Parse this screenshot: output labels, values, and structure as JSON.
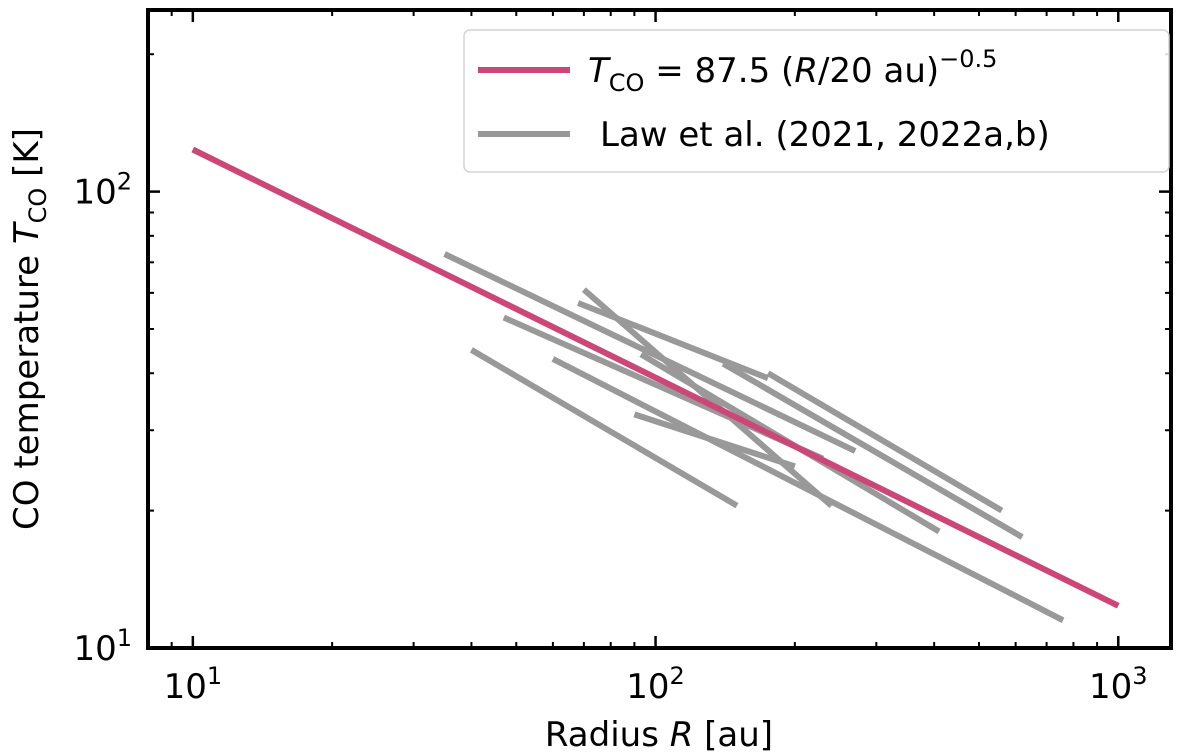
{
  "chart_data": {
    "type": "line",
    "x_scale": "log",
    "y_scale": "log",
    "xlim": [
      8,
      1300
    ],
    "ylim": [
      10,
      250
    ],
    "xlabel": {
      "prefix": "Radius ",
      "var": "R",
      "suffix": " [au]"
    },
    "ylabel": {
      "prefix": "CO temperature ",
      "var": "T",
      "sub": "CO",
      "suffix": " [K]"
    },
    "x_ticks": [
      {
        "base": "10",
        "exp": "1",
        "value": 10
      },
      {
        "base": "10",
        "exp": "2",
        "value": 100
      },
      {
        "base": "10",
        "exp": "3",
        "value": 1000
      }
    ],
    "y_ticks": [
      {
        "base": "10",
        "exp": "1",
        "value": 10
      },
      {
        "base": "10",
        "exp": "2",
        "value": 100
      }
    ],
    "grid": false,
    "legend_position": "top-right",
    "colors": {
      "model": "#cc4778",
      "obs": "#999999"
    },
    "model_line": {
      "legend": {
        "var": "T",
        "sub": "CO",
        "eq": " = 87.5 (",
        "rvar": "R",
        "rest": "/20 au)",
        "sup": "−0.5"
      },
      "x": [
        10,
        1000
      ],
      "y": [
        123.7,
        12.37
      ]
    },
    "obs_legend": "Law et al. (2021, 2022a,b)",
    "obs_lines": [
      {
        "x": [
          35,
          270
        ],
        "y": [
          73,
          27
        ]
      },
      {
        "x": [
          70,
          240
        ],
        "y": [
          61,
          20.5
        ]
      },
      {
        "x": [
          68,
          175
        ],
        "y": [
          57,
          39
        ]
      },
      {
        "x": [
          175,
          560
        ],
        "y": [
          40,
          20
        ]
      },
      {
        "x": [
          140,
          620
        ],
        "y": [
          42,
          17.5
        ]
      },
      {
        "x": [
          93,
          410
        ],
        "y": [
          44,
          18
        ]
      },
      {
        "x": [
          47,
          230
        ],
        "y": [
          53,
          26
        ]
      },
      {
        "x": [
          60,
          760
        ],
        "y": [
          43,
          11.5
        ]
      },
      {
        "x": [
          40,
          150
        ],
        "y": [
          45,
          20.5
        ]
      },
      {
        "x": [
          90,
          200
        ],
        "y": [
          32.5,
          25
        ]
      }
    ]
  }
}
